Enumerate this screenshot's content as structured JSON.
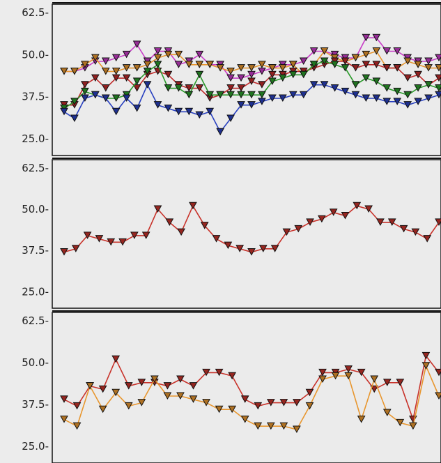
{
  "chart_data": [
    {
      "type": "line",
      "ylim": [
        20,
        65
      ],
      "yticks": [
        "62.5-",
        "50.0-",
        "37.5-",
        "25.0-"
      ],
      "marker": "triangle-down",
      "series": [
        {
          "color": "#c83cc8",
          "values": [
            45,
            45,
            46,
            48,
            48,
            49,
            50,
            53,
            48,
            51,
            51,
            47,
            48,
            50,
            47,
            47,
            43,
            43,
            44,
            45,
            46,
            47,
            47,
            48,
            51,
            51,
            50,
            49,
            49,
            55,
            55,
            51,
            51,
            49,
            48,
            48,
            49
          ]
        },
        {
          "color": "#e8962e",
          "values": [
            45,
            45,
            47,
            49,
            45,
            45,
            46,
            46,
            47,
            49,
            50,
            50,
            47,
            47,
            47,
            46,
            45,
            46,
            46,
            47,
            46,
            46,
            47,
            44,
            47,
            51,
            49,
            48,
            49,
            50,
            51,
            46,
            46,
            48,
            47,
            46,
            46
          ]
        },
        {
          "color": "#c02a2a",
          "values": [
            35,
            35,
            41,
            43,
            40,
            43,
            43,
            40,
            44,
            45,
            44,
            41,
            40,
            40,
            37,
            38,
            40,
            40,
            42,
            41,
            44,
            44,
            45,
            45,
            46,
            47,
            48,
            48,
            46,
            47,
            47,
            46,
            46,
            43,
            44,
            41,
            43
          ]
        },
        {
          "color": "#2a9a2a",
          "values": [
            34,
            36,
            39,
            38,
            37,
            37,
            38,
            42,
            45,
            47,
            40,
            40,
            38,
            44,
            38,
            38,
            38,
            38,
            38,
            38,
            42,
            43,
            44,
            44,
            47,
            48,
            47,
            46,
            41,
            43,
            42,
            40,
            39,
            38,
            40,
            41,
            40
          ]
        },
        {
          "color": "#2840c0",
          "values": [
            33,
            31,
            37,
            38,
            37,
            33,
            37,
            34,
            41,
            35,
            34,
            33,
            33,
            32,
            33,
            27,
            31,
            35,
            35,
            36,
            37,
            37,
            38,
            38,
            41,
            41,
            40,
            39,
            38,
            37,
            37,
            36,
            36,
            35,
            36,
            37,
            38
          ]
        }
      ]
    },
    {
      "type": "line",
      "ylim": [
        20,
        65
      ],
      "yticks": [
        "62.5-",
        "50.0-",
        "37.5-",
        "25.0-"
      ],
      "marker": "triangle-down",
      "series": [
        {
          "color": "#c8322a",
          "values": [
            37,
            38,
            42,
            41,
            40,
            40,
            42,
            42,
            50,
            46,
            43,
            51,
            45,
            41,
            39,
            38,
            37,
            38,
            38,
            43,
            44,
            46,
            47,
            49,
            48,
            51,
            50,
            46,
            46,
            44,
            43,
            41,
            46
          ]
        }
      ]
    },
    {
      "type": "line",
      "ylim": [
        20,
        65
      ],
      "yticks": [
        "62.5-",
        "50.0-",
        "37.5-",
        "25.0-"
      ],
      "marker": "triangle-down",
      "series": [
        {
          "color": "#c8322a",
          "values": [
            39,
            37,
            43,
            42,
            51,
            43,
            44,
            44,
            43,
            45,
            43,
            47,
            47,
            46,
            39,
            37,
            38,
            38,
            38,
            41,
            47,
            47,
            48,
            47,
            42,
            44,
            44,
            33,
            52,
            47
          ]
        },
        {
          "color": "#e8962e",
          "values": [
            33,
            31,
            43,
            36,
            41,
            37,
            38,
            45,
            40,
            40,
            39,
            38,
            36,
            36,
            33,
            31,
            31,
            31,
            30,
            37,
            45,
            46,
            46,
            33,
            45,
            35,
            32,
            31,
            49,
            40
          ]
        }
      ]
    }
  ]
}
